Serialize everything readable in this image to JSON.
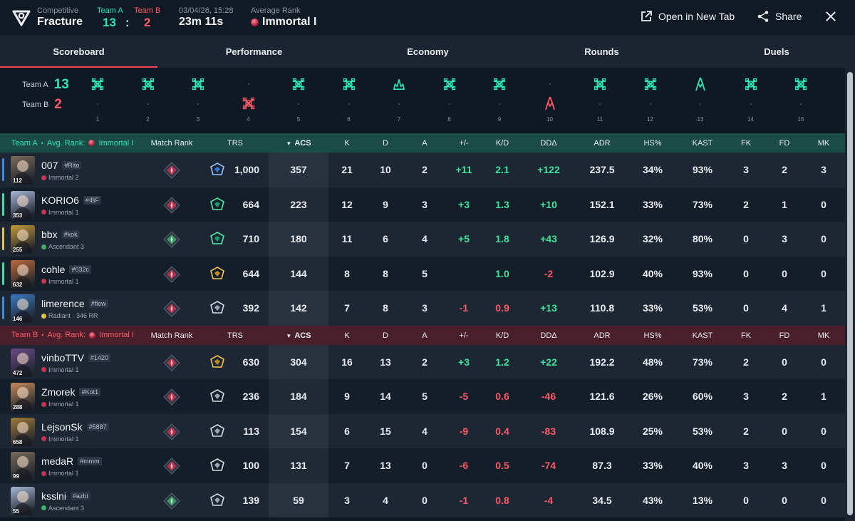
{
  "header": {
    "mode_label": "Competitive",
    "map_name": "Fracture",
    "team_a_label": "Team A",
    "team_b_label": "Team B",
    "team_a_score": "13",
    "score_separator": ":",
    "team_b_score": "2",
    "date": "03/04/26, 15:28",
    "duration": "23m 11s",
    "avg_rank_label": "Average Rank",
    "avg_rank_value": "Immortal I",
    "open_new_tab": "Open in New Tab",
    "share": "Share",
    "colors": {
      "team_a": "#2ee6b4",
      "team_b": "#ff5866",
      "accent": "#ff4655"
    }
  },
  "tabs": [
    {
      "label": "Scoreboard",
      "active": true
    },
    {
      "label": "Performance",
      "active": false
    },
    {
      "label": "Economy",
      "active": false
    },
    {
      "label": "Rounds",
      "active": false
    },
    {
      "label": "Duels",
      "active": false
    }
  ],
  "timeline": {
    "team_a_label": "Team A",
    "team_a_score": "13",
    "team_b_label": "Team B",
    "team_b_score": "2",
    "rounds": [
      {
        "num": "1",
        "winner": "A",
        "icon": "elimination-icon"
      },
      {
        "num": "2",
        "winner": "A",
        "icon": "elimination-icon"
      },
      {
        "num": "3",
        "winner": "A",
        "icon": "elimination-icon"
      },
      {
        "num": "4",
        "winner": "B",
        "icon": "elimination-icon"
      },
      {
        "num": "5",
        "winner": "A",
        "icon": "elimination-icon"
      },
      {
        "num": "6",
        "winner": "A",
        "icon": "elimination-icon"
      },
      {
        "num": "7",
        "winner": "A",
        "icon": "spike-detonate-icon"
      },
      {
        "num": "8",
        "winner": "A",
        "icon": "elimination-icon"
      },
      {
        "num": "9",
        "winner": "A",
        "icon": "elimination-icon"
      },
      {
        "num": "10",
        "winner": "B",
        "icon": "spike-defuse-icon"
      },
      {
        "num": "11",
        "winner": "A",
        "icon": "elimination-icon"
      },
      {
        "num": "12",
        "winner": "A",
        "icon": "elimination-icon"
      },
      {
        "num": "13",
        "winner": "A",
        "icon": "spike-defuse-icon"
      },
      {
        "num": "14",
        "winner": "A",
        "icon": "elimination-icon"
      },
      {
        "num": "15",
        "winner": "A",
        "icon": "elimination-icon"
      }
    ]
  },
  "columns": {
    "match_rank": "Match Rank",
    "trs": "TRS",
    "acs": "ACS",
    "k": "K",
    "d": "D",
    "a": "A",
    "pm": "+/-",
    "kd": "K/D",
    "dd": "DDΔ",
    "adr": "ADR",
    "hs": "HS%",
    "kast": "KAST",
    "fk": "FK",
    "fd": "FD",
    "mk": "MK"
  },
  "teams": [
    {
      "name": "Team A",
      "bullet": "•",
      "avg_label": "Avg. Rank:",
      "avg_rank": "Immortal I",
      "color": "#2ee6b4",
      "players": [
        {
          "name": "007",
          "tag": "#Rito",
          "rank": "Immortal 2",
          "rank_color": "#c7344f",
          "level": "112",
          "agent_color": "#7a6a5a",
          "bar_color": "#3a8ee6",
          "mrank_color": "#c7344f",
          "trs_icon": "trs-blue",
          "trs": "1,000",
          "acs": "357",
          "k": "21",
          "d": "10",
          "a": "2",
          "pm": "+11",
          "kd": "2.1",
          "kd_sign": "pos",
          "dd": "+122",
          "adr": "237.5",
          "hs": "34%",
          "kast": "93%",
          "fk": "3",
          "fd": "2",
          "mk": "3"
        },
        {
          "name": "KORIO6",
          "tag": "#IBF",
          "rank": "Immortal 1",
          "rank_color": "#c7344f",
          "level": "353",
          "agent_color": "#a6b6d6",
          "bar_color": "#2ee6b4",
          "mrank_color": "#c7344f",
          "trs_icon": "trs-green",
          "trs": "664",
          "acs": "223",
          "k": "12",
          "d": "9",
          "a": "3",
          "pm": "+3",
          "kd": "1.3",
          "kd_sign": "pos",
          "dd": "+10",
          "adr": "152.1",
          "hs": "33%",
          "kast": "73%",
          "fk": "2",
          "fd": "1",
          "mk": "0"
        },
        {
          "name": "bbx",
          "tag": "#kok",
          "rank": "Ascendant 3",
          "rank_color": "#3fae6a",
          "level": "255",
          "agent_color": "#c49a3a",
          "bar_color": "#e8c34a",
          "mrank_color": "#3fae6a",
          "trs_icon": "trs-green",
          "trs": "710",
          "acs": "180",
          "k": "11",
          "d": "6",
          "a": "4",
          "pm": "+5",
          "kd": "1.8",
          "kd_sign": "pos",
          "dd": "+43",
          "adr": "126.9",
          "hs": "32%",
          "kast": "80%",
          "fk": "0",
          "fd": "3",
          "mk": "0"
        },
        {
          "name": "cohle",
          "tag": "#032c",
          "rank": "Immortal 1",
          "rank_color": "#c7344f",
          "level": "632",
          "agent_color": "#b86a3a",
          "bar_color": "#2ee6b4",
          "mrank_color": "#c7344f",
          "trs_icon": "trs-gold",
          "trs": "644",
          "acs": "144",
          "k": "8",
          "d": "8",
          "a": "5",
          "pm": "",
          "kd": "1.0",
          "kd_sign": "pos",
          "dd": "-2",
          "adr": "102.9",
          "hs": "40%",
          "kast": "93%",
          "fk": "0",
          "fd": "0",
          "mk": "0"
        },
        {
          "name": "limerence",
          "tag": "#flow",
          "rank": "Radiant · 346 RR",
          "rank_color": "#e8c34a",
          "level": "146",
          "agent_color": "#3a7ac4",
          "bar_color": "#3a8ee6",
          "mrank_color": "#c7344f",
          "trs_icon": "trs-silver",
          "trs": "392",
          "acs": "142",
          "k": "7",
          "d": "8",
          "a": "3",
          "pm": "-1",
          "kd": "0.9",
          "kd_sign": "neg",
          "dd": "+13",
          "adr": "110.8",
          "hs": "33%",
          "kast": "53%",
          "fk": "0",
          "fd": "4",
          "mk": "1"
        }
      ]
    },
    {
      "name": "Team B",
      "bullet": "•",
      "avg_label": "Avg. Rank:",
      "avg_rank": "Immortal I",
      "color": "#ff5866",
      "players": [
        {
          "name": "vinboTTV",
          "tag": "#1420",
          "rank": "Immortal 1",
          "rank_color": "#c7344f",
          "level": "472",
          "agent_color": "#6a4a8a",
          "bar_color": "",
          "mrank_color": "#c7344f",
          "trs_icon": "trs-gold",
          "trs": "630",
          "acs": "304",
          "k": "16",
          "d": "13",
          "a": "2",
          "pm": "+3",
          "kd": "1.2",
          "kd_sign": "pos",
          "dd": "+22",
          "adr": "192.2",
          "hs": "48%",
          "kast": "73%",
          "fk": "2",
          "fd": "0",
          "mk": "0"
        },
        {
          "name": "Zmorek",
          "tag": "#Kot1",
          "rank": "Immortal 1",
          "rank_color": "#c7344f",
          "level": "288",
          "agent_color": "#c48a5a",
          "bar_color": "",
          "mrank_color": "#c7344f",
          "trs_icon": "trs-silver",
          "trs": "236",
          "acs": "184",
          "k": "9",
          "d": "14",
          "a": "5",
          "pm": "-5",
          "kd": "0.6",
          "kd_sign": "neg",
          "dd": "-46",
          "adr": "121.6",
          "hs": "26%",
          "kast": "60%",
          "fk": "3",
          "fd": "2",
          "mk": "1"
        },
        {
          "name": "LejsonSk",
          "tag": "#5887",
          "rank": "Immortal 1",
          "rank_color": "#c7344f",
          "level": "658",
          "agent_color": "#a07a3a",
          "bar_color": "",
          "mrank_color": "#c7344f",
          "trs_icon": "trs-silver",
          "trs": "113",
          "acs": "154",
          "k": "6",
          "d": "15",
          "a": "4",
          "pm": "-9",
          "kd": "0.4",
          "kd_sign": "neg",
          "dd": "-83",
          "adr": "108.9",
          "hs": "25%",
          "kast": "53%",
          "fk": "2",
          "fd": "0",
          "mk": "0"
        },
        {
          "name": "medaR",
          "tag": "#mmm",
          "rank": "Immortal 1",
          "rank_color": "#c7344f",
          "level": "99",
          "agent_color": "#7a6a5a",
          "bar_color": "",
          "mrank_color": "#c7344f",
          "trs_icon": "trs-silver",
          "trs": "100",
          "acs": "131",
          "k": "7",
          "d": "13",
          "a": "0",
          "pm": "-6",
          "kd": "0.5",
          "kd_sign": "neg",
          "dd": "-74",
          "adr": "87.3",
          "hs": "33%",
          "kast": "40%",
          "fk": "3",
          "fd": "3",
          "mk": "0"
        },
        {
          "name": "ksslni",
          "tag": "#azbi",
          "rank": "Ascendant 3",
          "rank_color": "#3fae6a",
          "level": "55",
          "agent_color": "#a6b6d6",
          "bar_color": "",
          "mrank_color": "#3fae6a",
          "trs_icon": "trs-silver",
          "trs": "139",
          "acs": "59",
          "k": "3",
          "d": "4",
          "a": "0",
          "pm": "-1",
          "kd": "0.8",
          "kd_sign": "neg",
          "dd": "-4",
          "adr": "34.5",
          "hs": "43%",
          "kast": "13%",
          "fk": "0",
          "fd": "0",
          "mk": "0"
        }
      ]
    }
  ]
}
